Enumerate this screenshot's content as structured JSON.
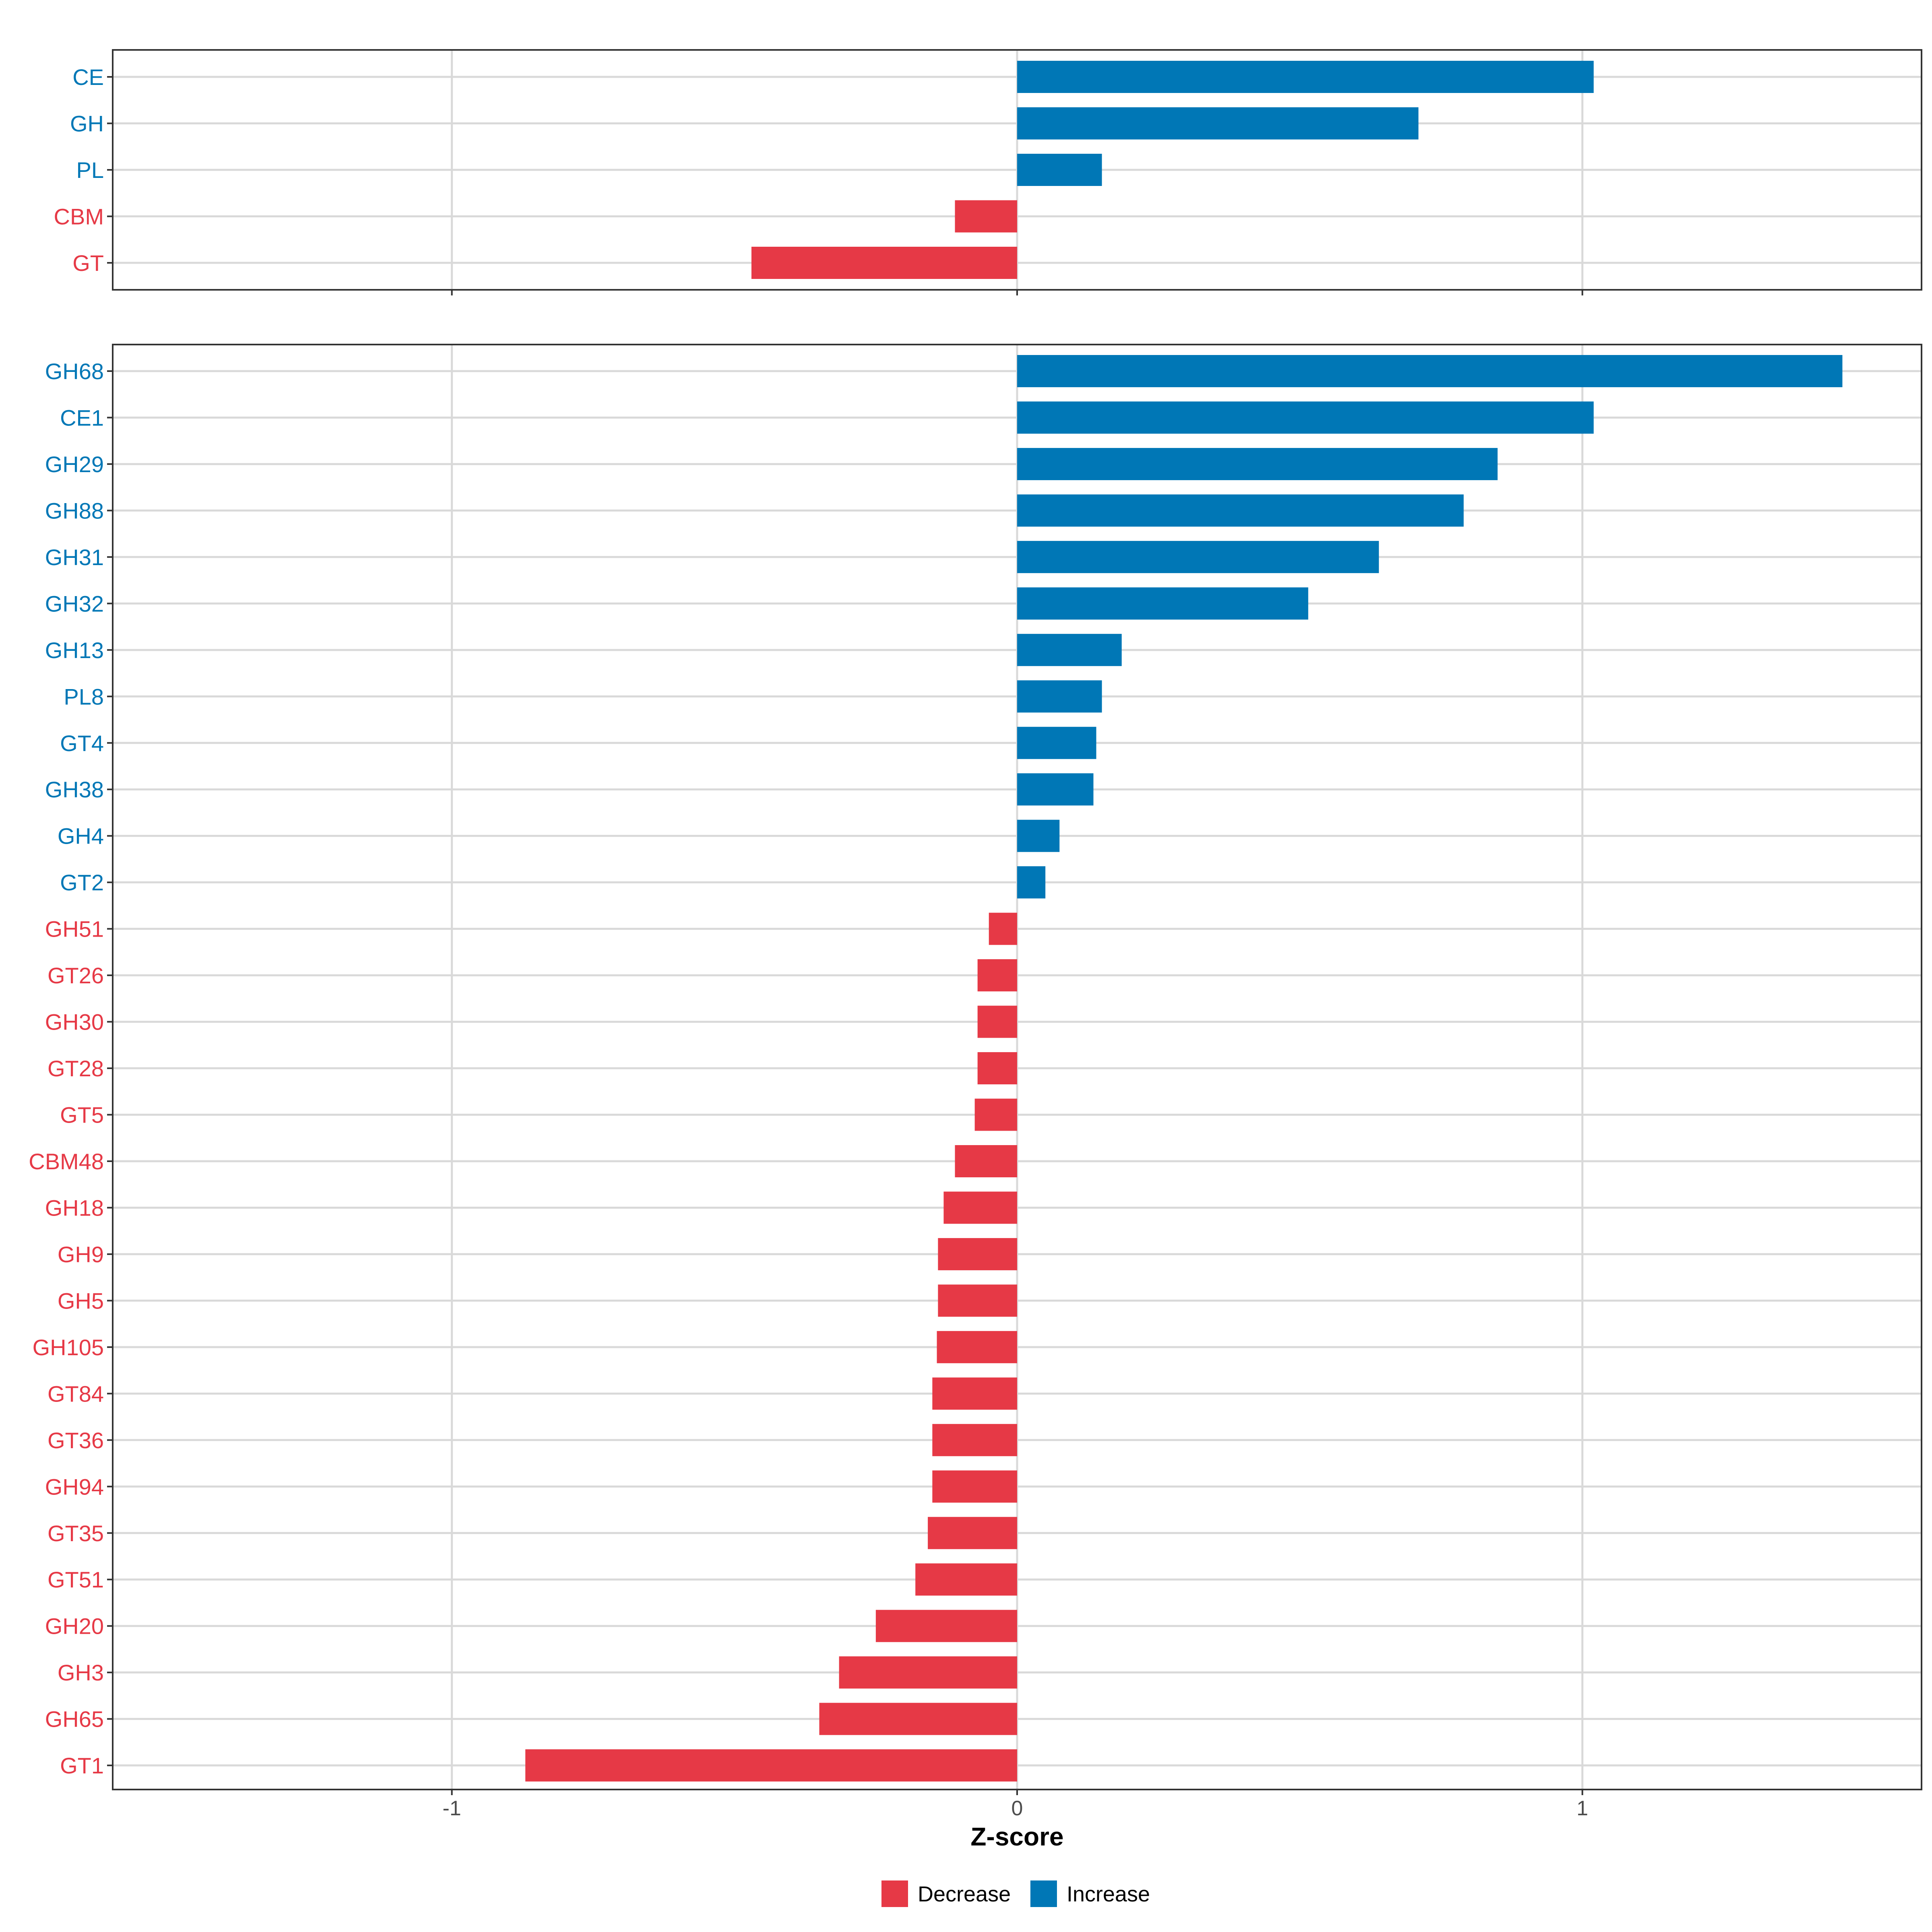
{
  "chart_data": [
    {
      "type": "bar",
      "orientation": "horizontal",
      "panel": "top",
      "categories": [
        "CE",
        "GH",
        "PL",
        "CBM",
        "GT"
      ],
      "values": [
        1.02,
        0.71,
        0.15,
        -0.11,
        -0.47
      ],
      "xlim": [
        -1.6,
        1.6
      ],
      "grid": true
    },
    {
      "type": "bar",
      "orientation": "horizontal",
      "panel": "bottom",
      "categories": [
        "GH68",
        "CE1",
        "GH29",
        "GH88",
        "GH31",
        "GH32",
        "GH13",
        "PL8",
        "GT4",
        "GH38",
        "GH4",
        "GT2",
        "GH51",
        "GT26",
        "GH30",
        "GT28",
        "GT5",
        "CBM48",
        "GH18",
        "GH9",
        "GH5",
        "GH105",
        "GT84",
        "GT36",
        "GH94",
        "GT35",
        "GT51",
        "GH20",
        "GH3",
        "GH65",
        "GT1"
      ],
      "values": [
        1.46,
        1.02,
        0.85,
        0.79,
        0.64,
        0.515,
        0.185,
        0.15,
        0.14,
        0.135,
        0.075,
        0.05,
        -0.05,
        -0.07,
        -0.07,
        -0.07,
        -0.075,
        -0.11,
        -0.13,
        -0.14,
        -0.14,
        -0.142,
        -0.15,
        -0.15,
        -0.15,
        -0.158,
        -0.18,
        -0.25,
        -0.315,
        -0.35,
        -0.87
      ],
      "xlim": [
        -1.6,
        1.6
      ],
      "xticks": [
        -1,
        0,
        1
      ],
      "xlabel": "Z-score",
      "grid": true
    }
  ],
  "legend": {
    "position": "bottom",
    "items": [
      {
        "label": "Decrease",
        "color": "#E63946"
      },
      {
        "label": "Increase",
        "color": "#0077B6"
      }
    ]
  },
  "colors": {
    "decrease": "#E63946",
    "increase": "#0077B6",
    "grid": "#d9d9d9",
    "axis": "#333333"
  }
}
